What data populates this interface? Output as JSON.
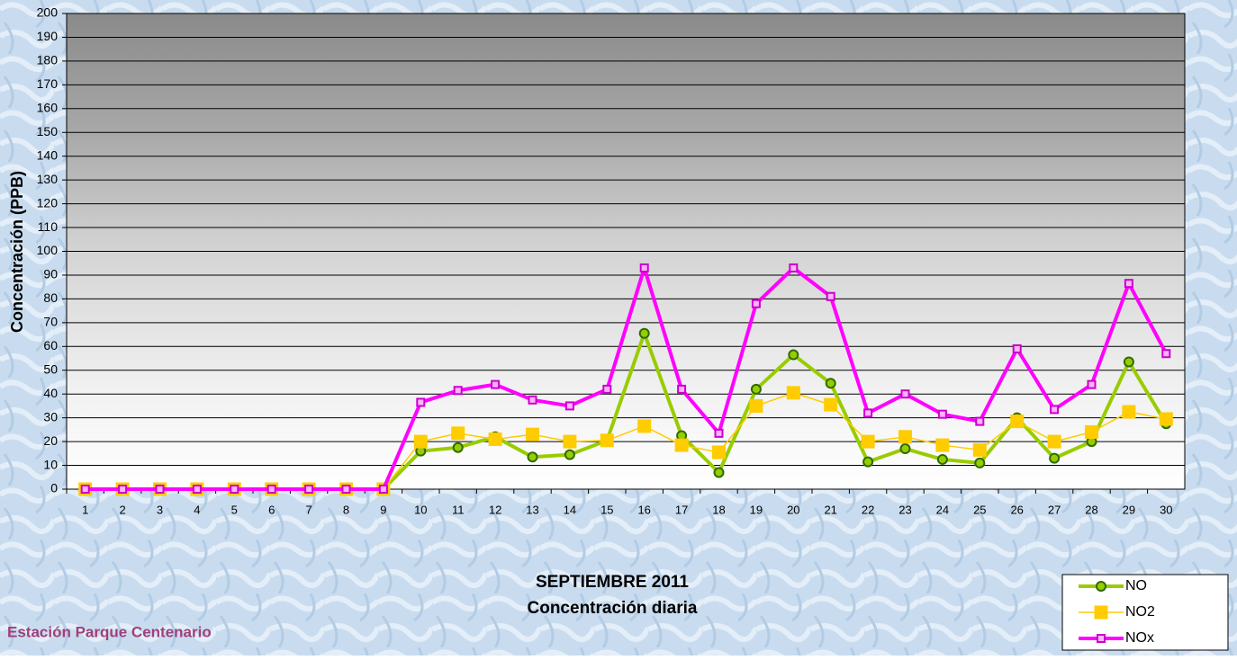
{
  "chart_data": {
    "type": "line",
    "title": "SEPTIEMBRE 2011",
    "subtitle": "Concentración diaria",
    "ylabel": "Concentración  (PPB)",
    "annotation": "Estación Parque Centenario",
    "categories": [
      1,
      2,
      3,
      4,
      5,
      6,
      7,
      8,
      9,
      10,
      11,
      12,
      13,
      14,
      15,
      16,
      17,
      18,
      19,
      20,
      21,
      22,
      23,
      24,
      25,
      26,
      27,
      28,
      29,
      30
    ],
    "series": [
      {
        "name": "NO",
        "color": "#99cc00",
        "values": [
          0,
          0,
          0,
          0,
          0,
          0,
          0,
          0,
          0,
          16,
          17.5,
          22,
          13.5,
          14.5,
          20.5,
          65.5,
          22.5,
          7,
          42,
          56.5,
          44.5,
          11.5,
          17,
          12.5,
          11,
          30,
          13,
          20,
          53.5,
          27.5
        ]
      },
      {
        "name": "NO2",
        "color": "#ffcc00",
        "values": [
          0,
          0,
          0,
          0,
          0,
          0,
          0,
          0,
          0,
          20,
          23.5,
          21,
          23,
          20,
          20.5,
          26.5,
          18.5,
          15.5,
          35,
          40.5,
          35.5,
          20,
          22,
          18.5,
          16.5,
          28.5,
          20,
          24,
          32.5,
          29.5
        ]
      },
      {
        "name": "NOx",
        "color": "#ff00ff",
        "values": [
          0,
          0,
          0,
          0,
          0,
          0,
          0,
          0,
          0,
          36.5,
          41.5,
          44,
          37.5,
          35,
          42,
          93,
          42,
          23.5,
          78,
          93,
          81,
          32,
          40,
          31.5,
          28.5,
          59,
          33.5,
          44,
          86.5,
          57
        ]
      }
    ],
    "ylim": [
      0,
      200
    ],
    "yticks": [
      0,
      10,
      20,
      30,
      40,
      50,
      60,
      70,
      80,
      90,
      100,
      110,
      120,
      130,
      140,
      150,
      160,
      170,
      180,
      190,
      200
    ],
    "grid": true
  }
}
